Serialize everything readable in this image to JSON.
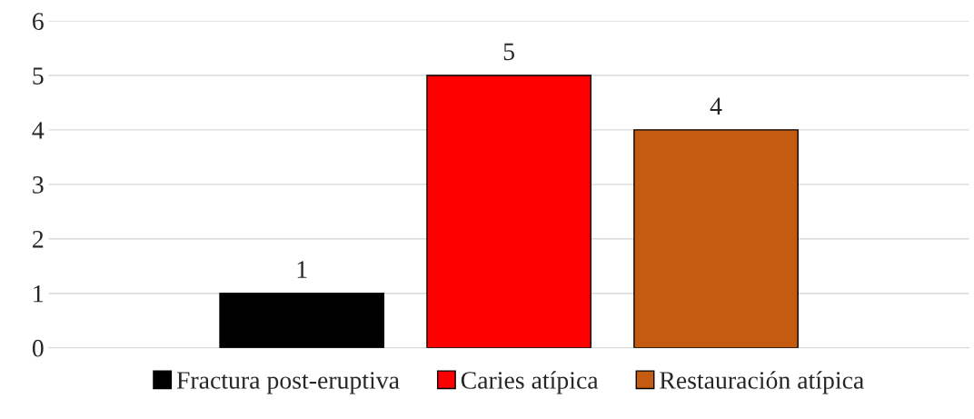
{
  "chart_data": {
    "type": "bar",
    "categories": [
      null
    ],
    "series": [
      {
        "name": "Fractura post-eruptiva",
        "color": "#000000",
        "values": [
          1
        ]
      },
      {
        "name": "Caries atípica",
        "color": "#ff0000",
        "values": [
          5
        ]
      },
      {
        "name": "Restauración atípica",
        "color": "#c55a11",
        "values": [
          4
        ]
      }
    ],
    "ylim": [
      0,
      6
    ],
    "yticks": [
      0,
      1,
      2,
      3,
      4,
      5,
      6
    ],
    "grid": "y",
    "data_labels": true,
    "legend": "bottom"
  }
}
